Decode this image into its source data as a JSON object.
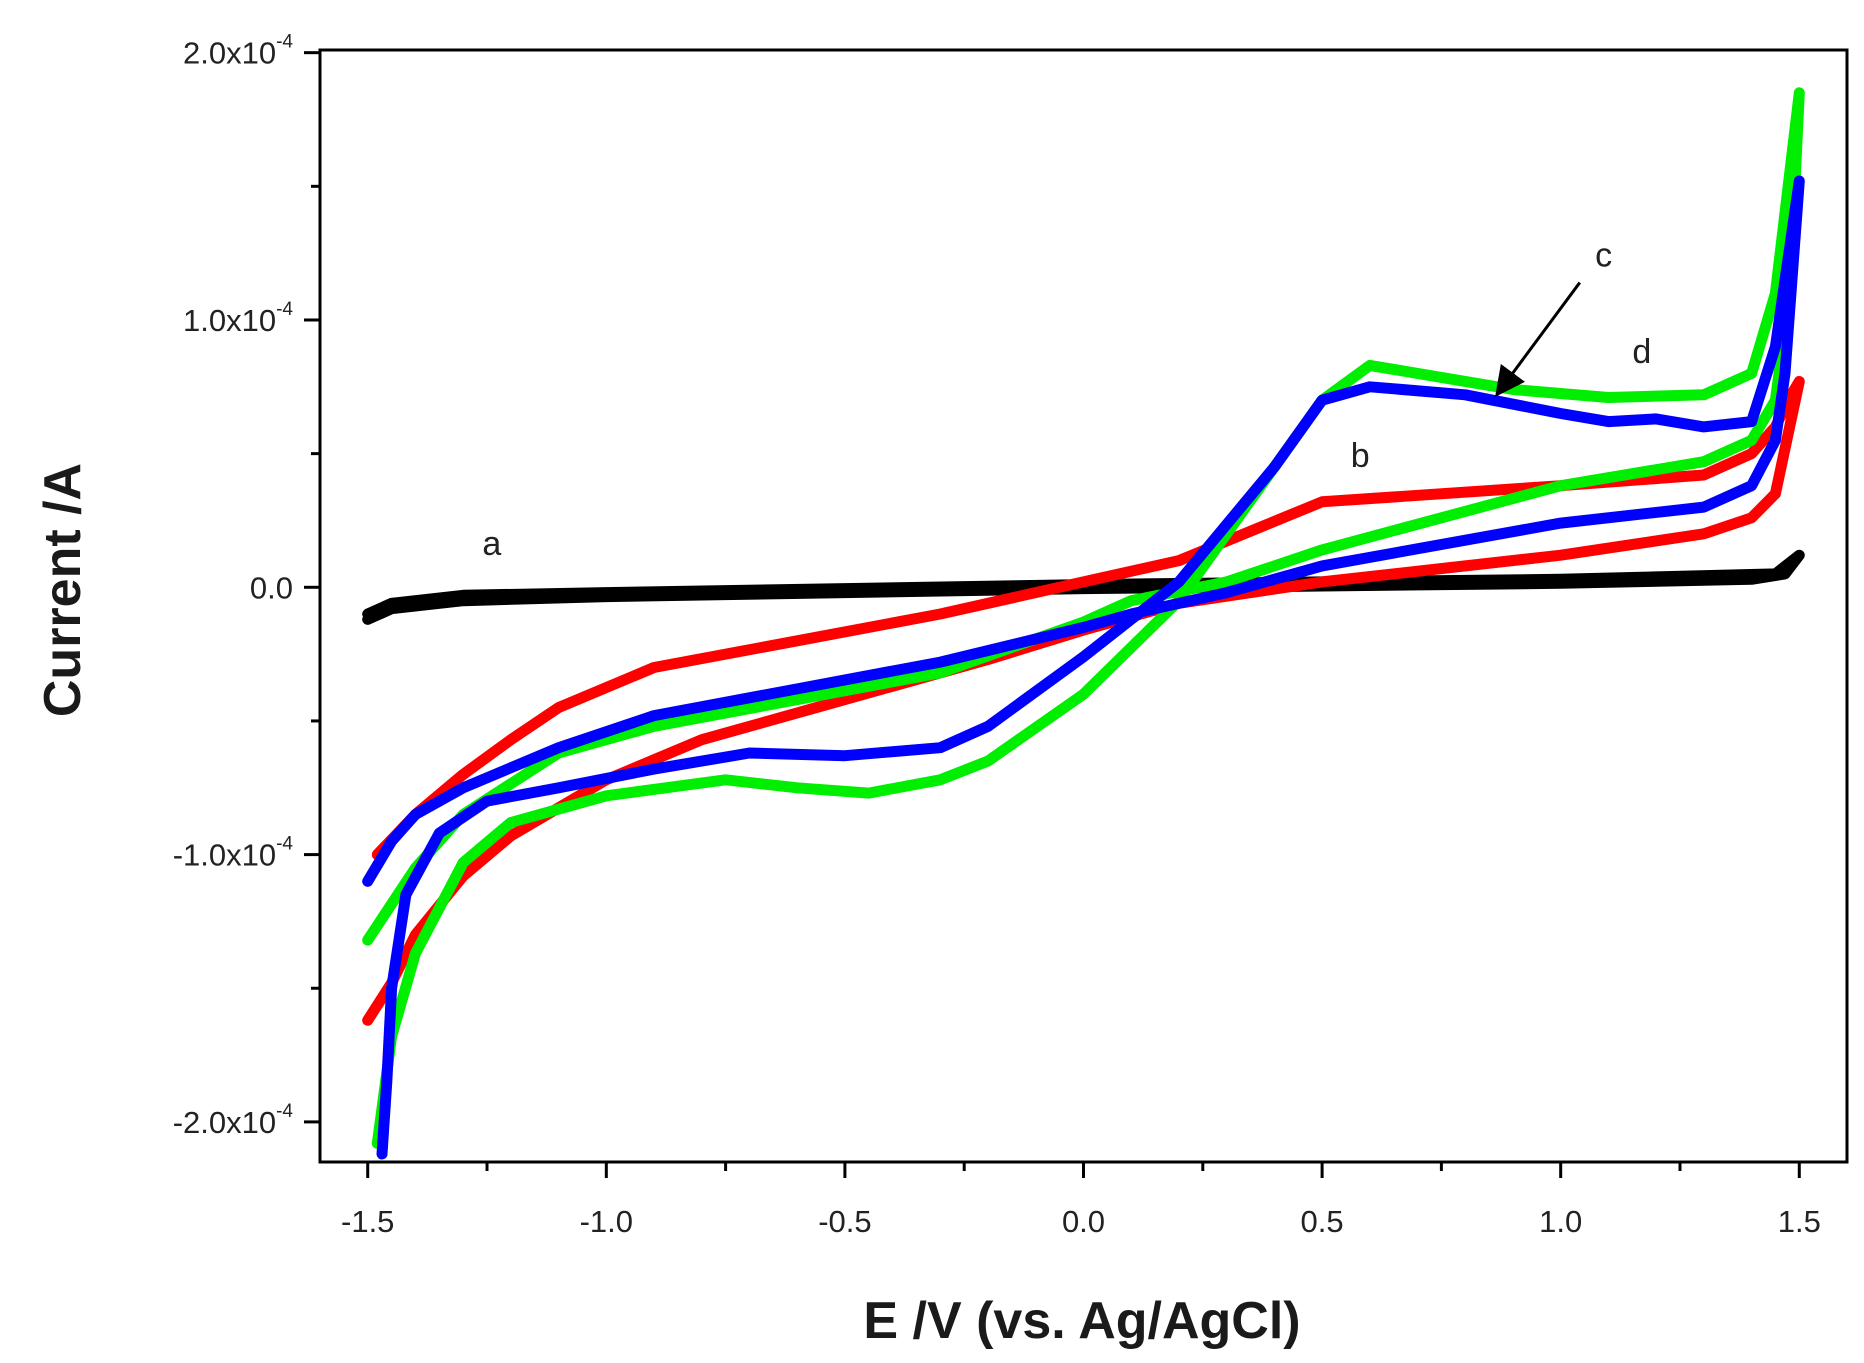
{
  "chart_data": {
    "type": "line",
    "title": "",
    "xlabel": "E /V (vs. Ag/AgCl)",
    "ylabel": "Current /A",
    "xlim": [
      -1.6,
      1.6
    ],
    "ylim": [
      -0.000215,
      0.000201
    ],
    "grid": false,
    "x_ticks": [
      -1.5,
      -1.0,
      -0.5,
      0.0,
      0.5,
      1.0,
      1.5
    ],
    "x_tick_labels": [
      "-1.5",
      "-1.0",
      "-0.5",
      "0.0",
      "0.5",
      "1.0",
      "1.5"
    ],
    "y_ticks": [
      -0.0002,
      -0.0001,
      0.0,
      0.0001,
      0.0002
    ],
    "y_tick_labels": [
      {
        "mantissa": "-2.0x10",
        "exp": "-4"
      },
      {
        "mantissa": "-1.0x10",
        "exp": "-4"
      },
      {
        "mantissa": "0.0",
        "exp": ""
      },
      {
        "mantissa": "1.0x10",
        "exp": "-4"
      },
      {
        "mantissa": "2.0x10",
        "exp": "-4"
      }
    ],
    "series": [
      {
        "name": "a",
        "color": "#000000",
        "x": [
          -1.5,
          -1.45,
          -1.3,
          -1.0,
          -0.5,
          0.0,
          0.5,
          1.0,
          1.4,
          1.47,
          1.5,
          1.45,
          1.0,
          0.5,
          0.0,
          -0.5,
          -1.0,
          -1.3,
          -1.45,
          -1.5
        ],
        "y": [
          -1.2e-05,
          -8e-06,
          -5e-06,
          -3.5e-06,
          -2e-06,
          -5e-07,
          5e-07,
          1.5e-06,
          3e-06,
          5e-06,
          1.2e-05,
          5e-06,
          3e-06,
          2e-06,
          1e-06,
          -5e-07,
          -2e-06,
          -3e-06,
          -6e-06,
          -1e-05
        ]
      },
      {
        "name": "b",
        "color": "#ff0000",
        "x": [
          -1.5,
          -1.45,
          -1.4,
          -1.3,
          -1.2,
          -1.0,
          -0.8,
          -0.5,
          -0.2,
          0.0,
          0.2,
          0.5,
          0.8,
          1.0,
          1.3,
          1.4,
          1.45,
          1.5,
          1.48,
          1.45,
          1.4,
          1.3,
          1.0,
          0.5,
          0.2,
          0.0,
          -0.3,
          -0.6,
          -0.9,
          -1.1,
          -1.2,
          -1.3,
          -1.4,
          -1.48
        ],
        "y": [
          -0.000162,
          -0.000148,
          -0.00013,
          -0.000108,
          -9.3e-05,
          -7.2e-05,
          -5.7e-05,
          -4.2e-05,
          -2.7e-05,
          -1.6e-05,
          -6e-06,
          2e-06,
          8e-06,
          1.2e-05,
          2e-05,
          2.6e-05,
          3.5e-05,
          7.7e-05,
          7.1e-05,
          6e-05,
          5e-05,
          4.2e-05,
          3.8e-05,
          3.2e-05,
          1e-05,
          2e-06,
          -1e-05,
          -2e-05,
          -3e-05,
          -4.5e-05,
          -5.7e-05,
          -7e-05,
          -8.5e-05,
          -0.0001
        ]
      },
      {
        "name": "c",
        "color": "#00ee00",
        "x": [
          -1.48,
          -1.47,
          -1.45,
          -1.4,
          -1.3,
          -1.2,
          -1.0,
          -0.75,
          -0.6,
          -0.45,
          -0.3,
          -0.2,
          0.0,
          0.2,
          0.4,
          0.5,
          0.6,
          0.7,
          0.9,
          1.1,
          1.3,
          1.4,
          1.45,
          1.5,
          1.48,
          1.45,
          1.4,
          1.3,
          1.0,
          0.5,
          0.3,
          0.1,
          0.0,
          -0.3,
          -0.6,
          -0.9,
          -1.1,
          -1.3,
          -1.4,
          -1.5
        ],
        "y": [
          -0.000208,
          -0.000195,
          -0.000168,
          -0.000137,
          -0.000103,
          -8.8e-05,
          -7.8e-05,
          -7.2e-05,
          -7.5e-05,
          -7.7e-05,
          -7.2e-05,
          -6.5e-05,
          -4e-05,
          -5e-06,
          4.5e-05,
          7e-05,
          8.3e-05,
          8e-05,
          7.4e-05,
          7.1e-05,
          7.2e-05,
          8e-05,
          0.00011,
          0.000185,
          0.00011,
          7e-05,
          5.5e-05,
          4.7e-05,
          3.8e-05,
          1.4e-05,
          2e-06,
          -5e-06,
          -1.3e-05,
          -3.2e-05,
          -4.2e-05,
          -5.2e-05,
          -6.2e-05,
          -8.5e-05,
          -0.000105,
          -0.000132
        ]
      },
      {
        "name": "d",
        "color": "#0000ff",
        "x": [
          -1.47,
          -1.46,
          -1.45,
          -1.42,
          -1.35,
          -1.25,
          -1.1,
          -0.9,
          -0.7,
          -0.5,
          -0.3,
          -0.2,
          0.0,
          0.2,
          0.4,
          0.5,
          0.6,
          0.8,
          1.0,
          1.1,
          1.2,
          1.3,
          1.4,
          1.45,
          1.5,
          1.47,
          1.45,
          1.4,
          1.3,
          1.0,
          0.5,
          0.3,
          0.1,
          0.0,
          -0.3,
          -0.6,
          -0.9,
          -1.1,
          -1.3,
          -1.4,
          -1.45,
          -1.5
        ],
        "y": [
          -0.000212,
          -0.000185,
          -0.00015,
          -0.000115,
          -9.2e-05,
          -8e-05,
          -7.5e-05,
          -6.8e-05,
          -6.2e-05,
          -6.3e-05,
          -6e-05,
          -5.2e-05,
          -2.6e-05,
          2e-06,
          4.5e-05,
          7e-05,
          7.5e-05,
          7.2e-05,
          6.5e-05,
          6.2e-05,
          6.3e-05,
          6e-05,
          6.2e-05,
          9e-05,
          0.000152,
          8e-05,
          5.5e-05,
          3.8e-05,
          3e-05,
          2.4e-05,
          8e-06,
          -2e-06,
          -1e-05,
          -1.5e-05,
          -2.8e-05,
          -3.8e-05,
          -4.8e-05,
          -6e-05,
          -7.5e-05,
          -8.5e-05,
          -9.5e-05,
          -0.00011
        ]
      }
    ],
    "annotations": [
      {
        "text": "a",
        "x": -1.24,
        "y": 1.2e-05
      },
      {
        "text": "b",
        "x": 0.58,
        "y": 4.5e-05
      },
      {
        "text": "c",
        "x": 1.09,
        "y": 0.00012
      },
      {
        "text": "d",
        "x": 1.17,
        "y": 8.4e-05
      }
    ],
    "arrow": {
      "from_x": 1.04,
      "from_y": 0.000114,
      "to_x": 0.87,
      "to_y": 7.3e-05
    }
  }
}
